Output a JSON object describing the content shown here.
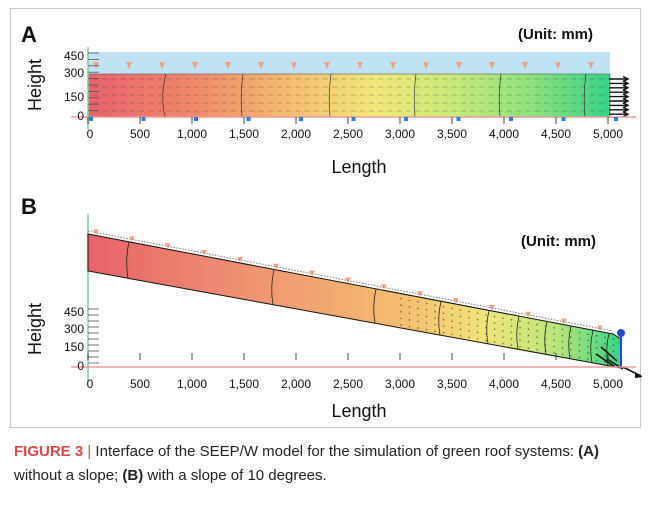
{
  "panels": [
    {
      "letter": "A",
      "unit": "(Unit: mm)",
      "xlabel": "Length",
      "ylabel": "Height",
      "x_ticks": [
        "0",
        "500",
        "1,000",
        "1,500",
        "2,000",
        "2,500",
        "3,000",
        "3,500",
        "4,000",
        "4,500",
        "5,000"
      ],
      "y_ticks": [
        "450",
        "300",
        "150",
        "0"
      ]
    },
    {
      "letter": "B",
      "unit": "(Unit: mm)",
      "xlabel": "Length",
      "ylabel": "Height",
      "x_ticks": [
        "0",
        "500",
        "1,000",
        "1,500",
        "2,000",
        "2,500",
        "3,000",
        "3,500",
        "4,000",
        "4,500",
        "5,000"
      ],
      "y_ticks": [
        "450",
        "300",
        "150",
        "0"
      ]
    }
  ],
  "caption": {
    "label": "FIGURE 3",
    "separator": "|",
    "text_1": " Interface of the SEEP/W model for the simulation of green roof systems: ",
    "part_a": "(A)",
    "text_2": " without a slope; ",
    "part_b": "(B)",
    "text_3": " with a slope of 10 degrees."
  }
}
